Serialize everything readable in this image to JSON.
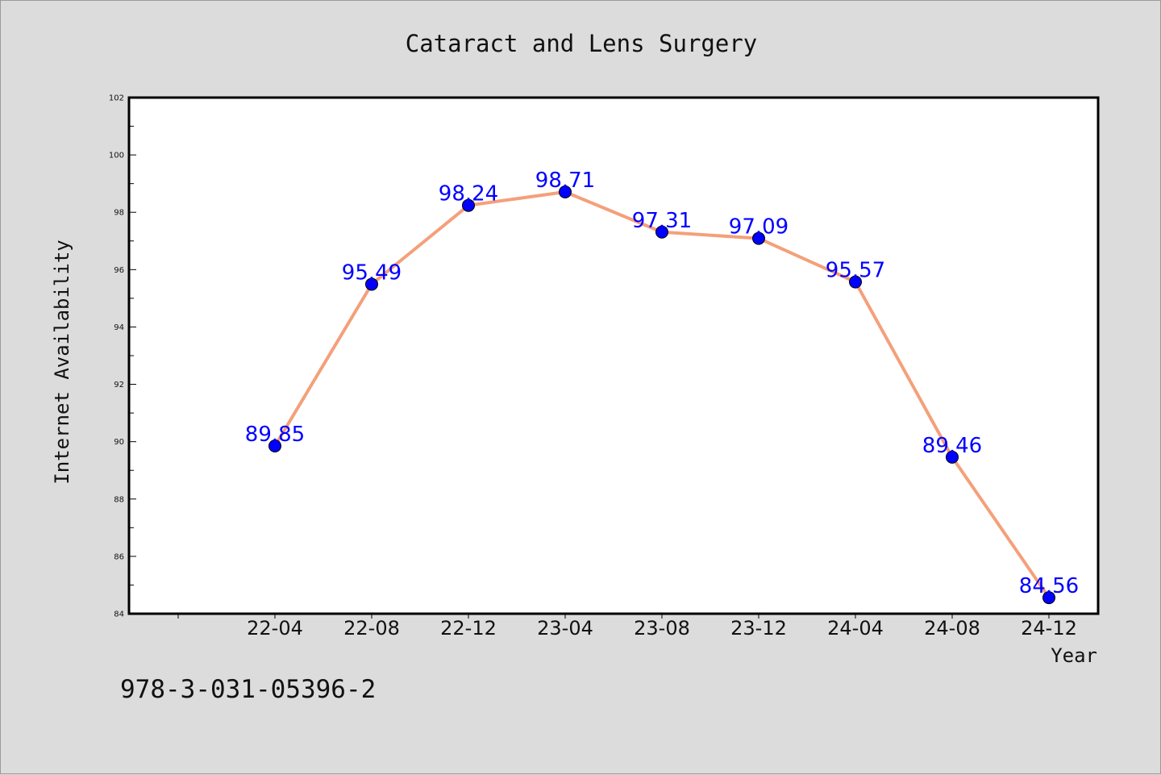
{
  "chart_data": {
    "type": "line",
    "title": "Cataract and Lens Surgery",
    "xlabel": "Year",
    "ylabel": "Internet Availability",
    "categories": [
      "22-04",
      "22-08",
      "22-12",
      "23-04",
      "23-08",
      "23-12",
      "24-04",
      "24-08",
      "24-12"
    ],
    "series": [
      {
        "values": [
          89.85,
          95.49,
          98.24,
          98.71,
          97.31,
          97.09,
          95.57,
          89.46,
          84.56
        ]
      }
    ],
    "data_labels": [
      "89.85",
      "95.49",
      "98.24",
      "98.71",
      "97.31",
      "97.09",
      "95.57",
      "89.46",
      "84.56"
    ],
    "ylim": [
      84,
      102
    ],
    "yticks": [
      84,
      86,
      88,
      90,
      92,
      94,
      96,
      98,
      100,
      102
    ],
    "grid": false,
    "legend": "none",
    "colors": {
      "line": "#f4a07a",
      "marker": "#0000ff",
      "label": "#0000ff"
    }
  },
  "footer": {
    "isbn": "978-3-031-05396-2"
  }
}
